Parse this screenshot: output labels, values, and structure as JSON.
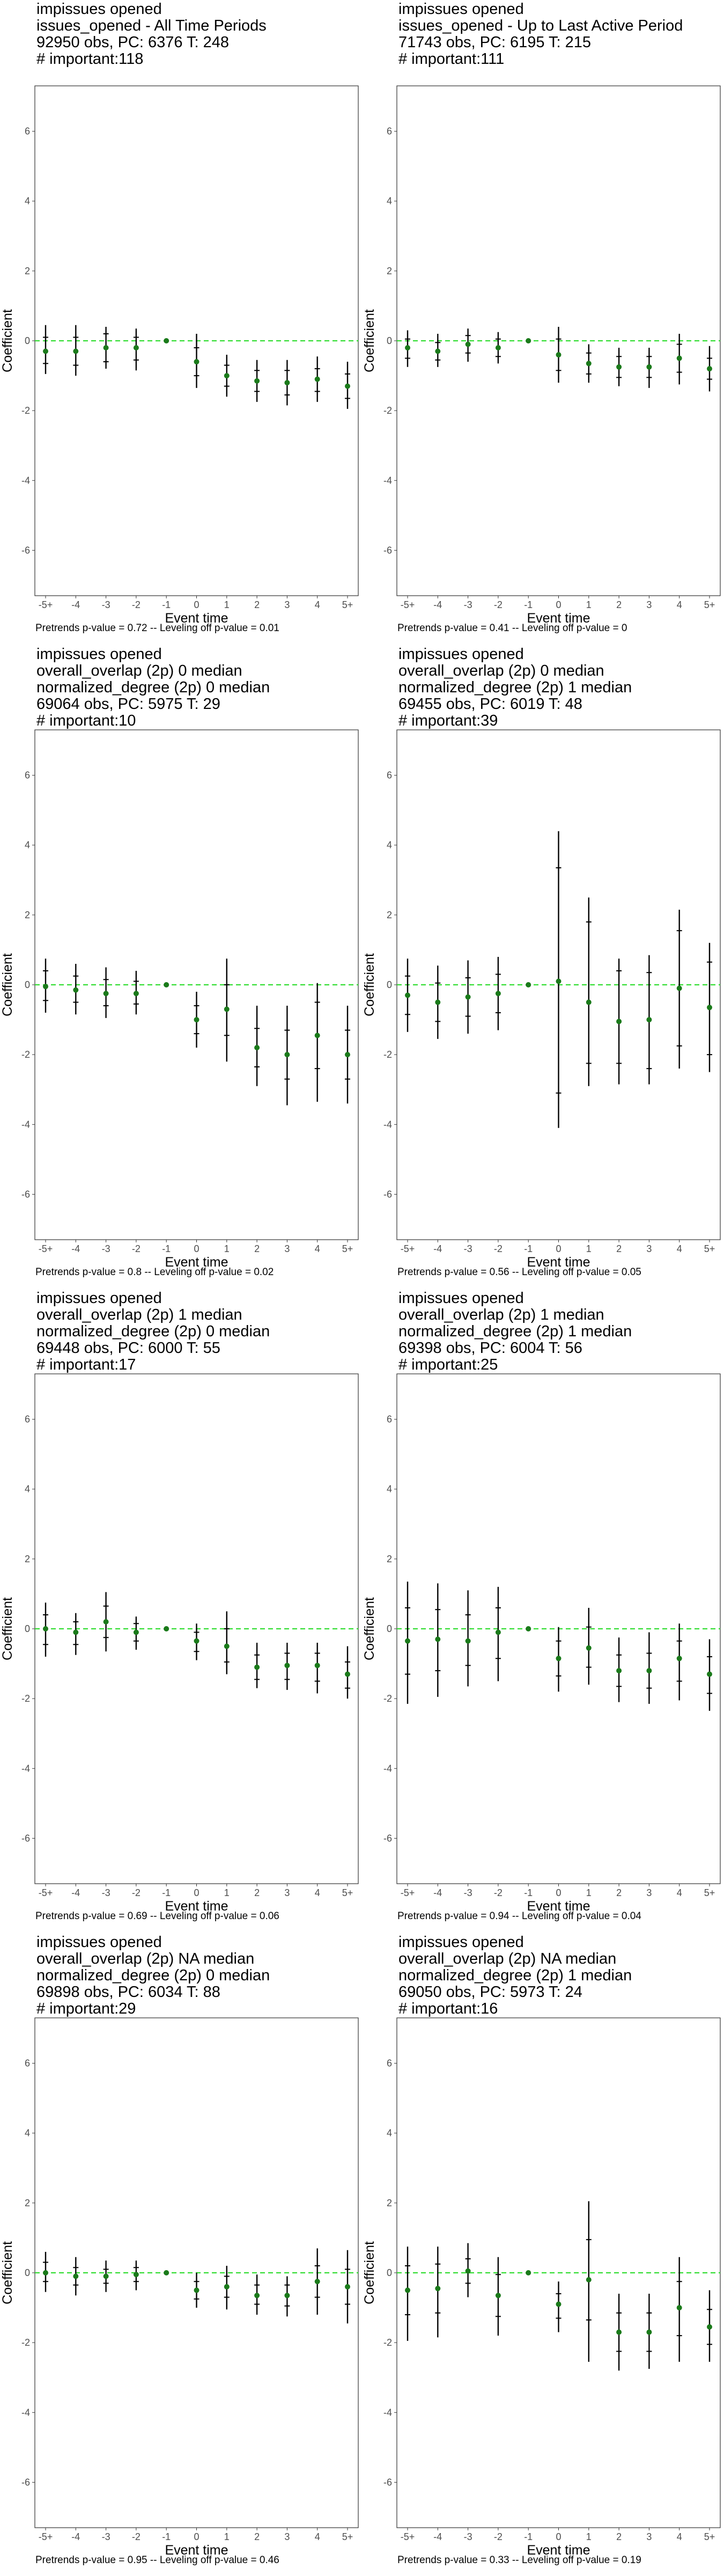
{
  "chart_data": [
    {
      "type": "scatter",
      "title_lines": [
        " impissues opened",
        "issues_opened - All Time Periods",
        "92950 obs, PC: 6376 T: 248",
        "# important:118"
      ],
      "caption": "Pretrends p-value = 0.72 -- Leveling off p-value = 0.01",
      "xlabel": "Event time",
      "ylabel": "Coefficient",
      "ylim": [
        -7.3,
        7.3
      ],
      "yticks": [
        "6",
        "4",
        "2",
        "0",
        "-2",
        "-4",
        "-6"
      ],
      "categories": [
        "-5+",
        "-4",
        "-3",
        "-2",
        "-1",
        "0",
        "1",
        "2",
        "3",
        "4",
        "5+"
      ],
      "values": [
        -0.3,
        -0.3,
        -0.2,
        -0.2,
        0.0,
        -0.6,
        -1.0,
        -1.15,
        -1.2,
        -1.1,
        -1.3
      ],
      "ci_outer": [
        [
          -0.95,
          0.45
        ],
        [
          -1.0,
          0.45
        ],
        [
          -0.8,
          0.4
        ],
        [
          -0.85,
          0.35
        ],
        [
          0.0,
          0.0
        ],
        [
          -1.35,
          0.2
        ],
        [
          -1.6,
          -0.4
        ],
        [
          -1.75,
          -0.55
        ],
        [
          -1.85,
          -0.55
        ],
        [
          -1.75,
          -0.45
        ],
        [
          -1.95,
          -0.6
        ]
      ],
      "ci_inner": [
        [
          -0.65,
          0.1
        ],
        [
          -0.7,
          0.1
        ],
        [
          -0.6,
          0.2
        ],
        [
          -0.55,
          0.1
        ],
        [
          0.0,
          0.0
        ],
        [
          -1.0,
          -0.2
        ],
        [
          -1.3,
          -0.7
        ],
        [
          -1.45,
          -0.85
        ],
        [
          -1.55,
          -0.85
        ],
        [
          -1.45,
          -0.8
        ],
        [
          -1.65,
          -0.95
        ]
      ],
      "ref_line": 0,
      "point_color": "#1a7a1a",
      "ref_color": "#33dd33",
      "grid": false
    },
    {
      "type": "scatter",
      "title_lines": [
        " impissues opened",
        "issues_opened - Up to Last Active Period",
        "71743 obs, PC: 6195 T: 215",
        "# important:111"
      ],
      "caption": "Pretrends p-value = 0.41 -- Leveling off p-value = 0",
      "xlabel": "Event time",
      "ylabel": "Coefficient",
      "ylim": [
        -7.3,
        7.3
      ],
      "yticks": [
        "6",
        "4",
        "2",
        "0",
        "-2",
        "-4",
        "-6"
      ],
      "categories": [
        "-5+",
        "-4",
        "-3",
        "-2",
        "-1",
        "0",
        "1",
        "2",
        "3",
        "4",
        "5+"
      ],
      "values": [
        -0.2,
        -0.3,
        -0.1,
        -0.2,
        0.0,
        -0.4,
        -0.65,
        -0.75,
        -0.75,
        -0.5,
        -0.8
      ],
      "ci_outer": [
        [
          -0.75,
          0.3
        ],
        [
          -0.75,
          0.2
        ],
        [
          -0.6,
          0.35
        ],
        [
          -0.65,
          0.25
        ],
        [
          0.0,
          0.0
        ],
        [
          -1.2,
          0.4
        ],
        [
          -1.2,
          -0.1
        ],
        [
          -1.3,
          -0.2
        ],
        [
          -1.35,
          -0.2
        ],
        [
          -1.25,
          0.2
        ],
        [
          -1.45,
          -0.15
        ]
      ],
      "ci_inner": [
        [
          -0.5,
          0.05
        ],
        [
          -0.55,
          -0.05
        ],
        [
          -0.35,
          0.15
        ],
        [
          -0.45,
          0.05
        ],
        [
          0.0,
          0.0
        ],
        [
          -0.85,
          0.05
        ],
        [
          -0.95,
          -0.35
        ],
        [
          -1.05,
          -0.45
        ],
        [
          -1.05,
          -0.45
        ],
        [
          -0.9,
          -0.1
        ],
        [
          -1.1,
          -0.5
        ]
      ],
      "ref_line": 0,
      "point_color": "#1a7a1a",
      "ref_color": "#33dd33",
      "grid": false
    },
    {
      "type": "scatter",
      "title_lines": [
        " impissues opened",
        "overall_overlap (2p) 0 median",
        "normalized_degree (2p) 0 median",
        "69064 obs, PC: 5975 T: 29",
        "# important:10"
      ],
      "caption": "Pretrends p-value = 0.8 -- Leveling off p-value = 0.02",
      "xlabel": "Event time",
      "ylabel": "Coefficient",
      "ylim": [
        -7.3,
        7.3
      ],
      "yticks": [
        "6",
        "4",
        "2",
        "0",
        "-2",
        "-4",
        "-6"
      ],
      "categories": [
        "-5+",
        "-4",
        "-3",
        "-2",
        "-1",
        "0",
        "1",
        "2",
        "3",
        "4",
        "5+"
      ],
      "values": [
        -0.05,
        -0.15,
        -0.25,
        -0.25,
        0.0,
        -1.0,
        -0.7,
        -1.8,
        -2.0,
        -1.45,
        -2.0
      ],
      "ci_outer": [
        [
          -0.8,
          0.75
        ],
        [
          -0.85,
          0.6
        ],
        [
          -0.95,
          0.5
        ],
        [
          -0.85,
          0.4
        ],
        [
          0.0,
          0.0
        ],
        [
          -1.8,
          -0.2
        ],
        [
          -2.2,
          0.75
        ],
        [
          -2.9,
          -0.6
        ],
        [
          -3.45,
          -0.6
        ],
        [
          -3.35,
          0.05
        ],
        [
          -3.4,
          -0.6
        ]
      ],
      "ci_inner": [
        [
          -0.45,
          0.4
        ],
        [
          -0.5,
          0.25
        ],
        [
          -0.6,
          0.15
        ],
        [
          -0.55,
          0.1
        ],
        [
          0.0,
          0.0
        ],
        [
          -1.4,
          -0.6
        ],
        [
          -1.45,
          0.0
        ],
        [
          -2.35,
          -1.25
        ],
        [
          -2.7,
          -1.3
        ],
        [
          -2.4,
          -0.5
        ],
        [
          -2.7,
          -1.3
        ]
      ],
      "ref_line": 0,
      "point_color": "#1a7a1a",
      "ref_color": "#33dd33",
      "grid": false
    },
    {
      "type": "scatter",
      "title_lines": [
        " impissues opened",
        "overall_overlap (2p) 0 median",
        "normalized_degree (2p) 1 median",
        "69455 obs, PC: 6019 T: 48",
        "# important:39"
      ],
      "caption": "Pretrends p-value = 0.56 -- Leveling off p-value = 0.05",
      "xlabel": "Event time",
      "ylabel": "Coefficient",
      "ylim": [
        -7.3,
        7.3
      ],
      "yticks": [
        "6",
        "4",
        "2",
        "0",
        "-2",
        "-4",
        "-6"
      ],
      "categories": [
        "-5+",
        "-4",
        "-3",
        "-2",
        "-1",
        "0",
        "1",
        "2",
        "3",
        "4",
        "5+"
      ],
      "values": [
        -0.3,
        -0.5,
        -0.35,
        -0.25,
        0.0,
        0.1,
        -0.5,
        -1.05,
        -1.0,
        -0.1,
        -0.65
      ],
      "ci_outer": [
        [
          -1.35,
          0.75
        ],
        [
          -1.55,
          0.55
        ],
        [
          -1.4,
          0.7
        ],
        [
          -1.3,
          0.8
        ],
        [
          0.0,
          0.0
        ],
        [
          -4.1,
          4.4
        ],
        [
          -2.9,
          2.5
        ],
        [
          -2.85,
          0.75
        ],
        [
          -2.85,
          0.85
        ],
        [
          -2.4,
          2.15
        ],
        [
          -2.5,
          1.2
        ]
      ],
      "ci_inner": [
        [
          -0.85,
          0.25
        ],
        [
          -1.05,
          0.05
        ],
        [
          -0.9,
          0.2
        ],
        [
          -0.8,
          0.3
        ],
        [
          0.0,
          0.0
        ],
        [
          -3.1,
          3.35
        ],
        [
          -2.25,
          1.8
        ],
        [
          -2.25,
          0.4
        ],
        [
          -2.4,
          0.35
        ],
        [
          -1.75,
          1.55
        ],
        [
          -2.0,
          0.65
        ]
      ],
      "ref_line": 0,
      "point_color": "#1a7a1a",
      "ref_color": "#33dd33",
      "grid": false
    },
    {
      "type": "scatter",
      "title_lines": [
        " impissues opened",
        "overall_overlap (2p) 1 median",
        "normalized_degree (2p) 0 median",
        "69448 obs, PC: 6000 T: 55",
        "# important:17"
      ],
      "caption": "Pretrends p-value = 0.69 -- Leveling off p-value = 0.06",
      "xlabel": "Event time",
      "ylabel": "Coefficient",
      "ylim": [
        -7.3,
        7.3
      ],
      "yticks": [
        "6",
        "4",
        "2",
        "0",
        "-2",
        "-4",
        "-6"
      ],
      "categories": [
        "-5+",
        "-4",
        "-3",
        "-2",
        "-1",
        "0",
        "1",
        "2",
        "3",
        "4",
        "5+"
      ],
      "values": [
        0.0,
        -0.1,
        0.2,
        -0.1,
        0.0,
        -0.35,
        -0.5,
        -1.1,
        -1.05,
        -1.05,
        -1.3
      ],
      "ci_outer": [
        [
          -0.8,
          0.75
        ],
        [
          -0.75,
          0.45
        ],
        [
          -0.65,
          1.05
        ],
        [
          -0.6,
          0.35
        ],
        [
          0.0,
          0.0
        ],
        [
          -0.9,
          0.15
        ],
        [
          -1.3,
          0.5
        ],
        [
          -1.7,
          -0.4
        ],
        [
          -1.75,
          -0.4
        ],
        [
          -1.85,
          -0.4
        ],
        [
          -2.0,
          -0.5
        ]
      ],
      "ci_inner": [
        [
          -0.45,
          0.4
        ],
        [
          -0.45,
          0.2
        ],
        [
          -0.25,
          0.65
        ],
        [
          -0.35,
          0.15
        ],
        [
          0.0,
          0.0
        ],
        [
          -0.65,
          -0.1
        ],
        [
          -0.95,
          0.0
        ],
        [
          -1.45,
          -0.75
        ],
        [
          -1.45,
          -0.7
        ],
        [
          -1.5,
          -0.7
        ],
        [
          -1.7,
          -0.95
        ]
      ],
      "ref_line": 0,
      "point_color": "#1a7a1a",
      "ref_color": "#33dd33",
      "grid": false
    },
    {
      "type": "scatter",
      "title_lines": [
        " impissues opened",
        "overall_overlap (2p) 1 median",
        "normalized_degree (2p) 1 median",
        "69398 obs, PC: 6004 T: 56",
        "# important:25"
      ],
      "caption": "Pretrends p-value = 0.94 -- Leveling off p-value = 0.04",
      "xlabel": "Event time",
      "ylabel": "Coefficient",
      "ylim": [
        -7.3,
        7.3
      ],
      "yticks": [
        "6",
        "4",
        "2",
        "0",
        "-2",
        "-4",
        "-6"
      ],
      "categories": [
        "-5+",
        "-4",
        "-3",
        "-2",
        "-1",
        "0",
        "1",
        "2",
        "3",
        "4",
        "5+"
      ],
      "values": [
        -0.35,
        -0.3,
        -0.35,
        -0.1,
        0.0,
        -0.85,
        -0.55,
        -1.2,
        -1.2,
        -0.85,
        -1.3
      ],
      "ci_outer": [
        [
          -2.15,
          1.35
        ],
        [
          -1.95,
          1.3
        ],
        [
          -1.65,
          1.1
        ],
        [
          -1.5,
          1.2
        ],
        [
          0.0,
          0.0
        ],
        [
          -1.8,
          0.05
        ],
        [
          -1.6,
          0.6
        ],
        [
          -2.1,
          -0.25
        ],
        [
          -2.15,
          -0.1
        ],
        [
          -2.05,
          0.15
        ],
        [
          -2.35,
          -0.3
        ]
      ],
      "ci_inner": [
        [
          -1.3,
          0.6
        ],
        [
          -1.2,
          0.55
        ],
        [
          -1.05,
          0.4
        ],
        [
          -0.85,
          0.6
        ],
        [
          0.0,
          0.0
        ],
        [
          -1.35,
          -0.35
        ],
        [
          -1.1,
          0.05
        ],
        [
          -1.65,
          -0.75
        ],
        [
          -1.7,
          -0.7
        ],
        [
          -1.5,
          -0.35
        ],
        [
          -1.85,
          -0.8
        ]
      ],
      "ref_line": 0,
      "point_color": "#1a7a1a",
      "ref_color": "#33dd33",
      "grid": false
    },
    {
      "type": "scatter",
      "title_lines": [
        " impissues opened",
        "overall_overlap (2p) NA median",
        "normalized_degree (2p) 0 median",
        "69898 obs, PC: 6034 T: 88",
        "# important:29"
      ],
      "caption": "Pretrends p-value = 0.95 -- Leveling off p-value = 0.46",
      "xlabel": "Event time",
      "ylabel": "Coefficient",
      "ylim": [
        -7.3,
        7.3
      ],
      "yticks": [
        "6",
        "4",
        "2",
        "0",
        "-2",
        "-4",
        "-6"
      ],
      "categories": [
        "-5+",
        "-4",
        "-3",
        "-2",
        "-1",
        "0",
        "1",
        "2",
        "3",
        "4",
        "5+"
      ],
      "values": [
        0.0,
        -0.1,
        -0.1,
        -0.05,
        0.0,
        -0.5,
        -0.4,
        -0.65,
        -0.65,
        -0.25,
        -0.4
      ],
      "ci_outer": [
        [
          -0.55,
          0.6
        ],
        [
          -0.65,
          0.45
        ],
        [
          -0.55,
          0.35
        ],
        [
          -0.5,
          0.35
        ],
        [
          0.0,
          0.0
        ],
        [
          -1.0,
          0.0
        ],
        [
          -1.05,
          0.2
        ],
        [
          -1.2,
          -0.05
        ],
        [
          -1.25,
          -0.1
        ],
        [
          -1.2,
          0.7
        ],
        [
          -1.45,
          0.65
        ]
      ],
      "ci_inner": [
        [
          -0.25,
          0.3
        ],
        [
          -0.35,
          0.15
        ],
        [
          -0.3,
          0.1
        ],
        [
          -0.25,
          0.15
        ],
        [
          0.0,
          0.0
        ],
        [
          -0.75,
          -0.25
        ],
        [
          -0.7,
          -0.1
        ],
        [
          -0.9,
          -0.35
        ],
        [
          -0.95,
          -0.35
        ],
        [
          -0.7,
          0.2
        ],
        [
          -0.9,
          0.1
        ]
      ],
      "ref_line": 0,
      "point_color": "#1a7a1a",
      "ref_color": "#33dd33",
      "grid": false
    },
    {
      "type": "scatter",
      "title_lines": [
        " impissues opened",
        "overall_overlap (2p) NA median",
        "normalized_degree (2p) 1 median",
        "69050 obs, PC: 5973 T: 24",
        "# important:16"
      ],
      "caption": "Pretrends p-value = 0.33 -- Leveling off p-value = 0.19",
      "xlabel": "Event time",
      "ylabel": "Coefficient",
      "ylim": [
        -7.3,
        7.3
      ],
      "yticks": [
        "6",
        "4",
        "2",
        "0",
        "-2",
        "-4",
        "-6"
      ],
      "categories": [
        "-5+",
        "-4",
        "-3",
        "-2",
        "-1",
        "0",
        "1",
        "2",
        "3",
        "4",
        "5+"
      ],
      "values": [
        -0.5,
        -0.45,
        0.05,
        -0.65,
        0.0,
        -0.9,
        -0.2,
        -1.7,
        -1.7,
        -1.0,
        -1.55
      ],
      "ci_outer": [
        [
          -1.95,
          0.75
        ],
        [
          -1.85,
          0.75
        ],
        [
          -0.7,
          0.85
        ],
        [
          -1.8,
          0.45
        ],
        [
          0.0,
          0.0
        ],
        [
          -1.7,
          -0.25
        ],
        [
          -2.55,
          2.05
        ],
        [
          -2.8,
          -0.6
        ],
        [
          -2.75,
          -0.6
        ],
        [
          -2.55,
          0.45
        ],
        [
          -2.55,
          -0.5
        ]
      ],
      "ci_inner": [
        [
          -1.2,
          0.2
        ],
        [
          -1.15,
          0.25
        ],
        [
          -0.3,
          0.4
        ],
        [
          -1.25,
          -0.05
        ],
        [
          0.0,
          0.0
        ],
        [
          -1.3,
          -0.6
        ],
        [
          -1.35,
          0.95
        ],
        [
          -2.25,
          -1.15
        ],
        [
          -2.25,
          -1.15
        ],
        [
          -1.8,
          -0.25
        ],
        [
          -2.05,
          -1.05
        ]
      ],
      "ref_line": 0,
      "point_color": "#1a7a1a",
      "ref_color": "#33dd33",
      "grid": false
    }
  ]
}
